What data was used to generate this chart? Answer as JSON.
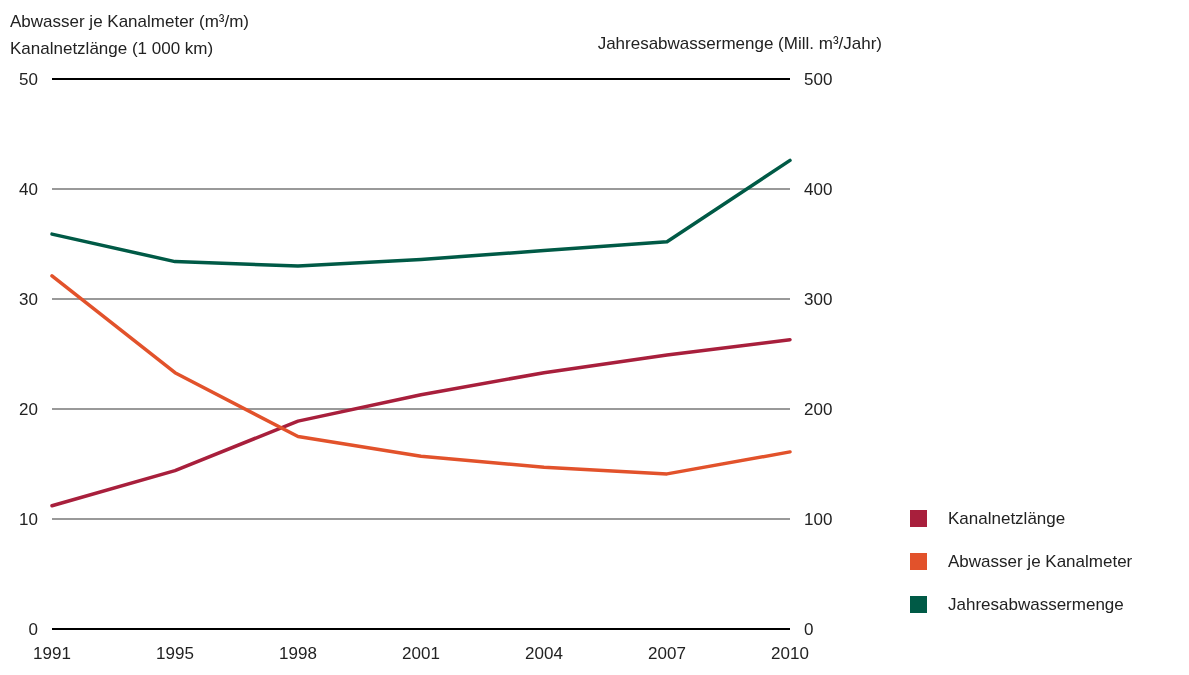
{
  "chart_data": {
    "type": "line",
    "ylabel": "Abwasser je Kanalmeter (m³/m)\nKanalnetzlänge (1 000 km)",
    "y2label": "Jahresabwassermenge (Mill. m³/Jahr)",
    "categories": [
      "1991",
      "1995",
      "1998",
      "2001",
      "2004",
      "2007",
      "2010"
    ],
    "series": [
      {
        "name": "Kanalnetzlänge",
        "color": "#a81f3c",
        "values": [
          11.2,
          14.4,
          18.9,
          21.3,
          23.3,
          24.9,
          26.3
        ]
      },
      {
        "name": "Abwasser je Kanalmeter",
        "color": "#e2522b",
        "values": [
          32.1,
          23.3,
          17.5,
          15.7,
          14.7,
          14.1,
          16.1
        ]
      },
      {
        "name": "Jahresabwassermenge",
        "color": "#005a46",
        "axis": "y2",
        "values": [
          359,
          334,
          330,
          336,
          344,
          352,
          426
        ]
      }
    ],
    "ylim": [
      0,
      50
    ],
    "yticks": [
      0,
      10,
      20,
      30,
      40,
      50
    ],
    "y2lim": [
      0,
      500
    ],
    "y2ticks": [
      0,
      100,
      200,
      300,
      400,
      500
    ],
    "grid": "y",
    "legend": "right",
    "marker": "none",
    "line_style": "solid"
  }
}
